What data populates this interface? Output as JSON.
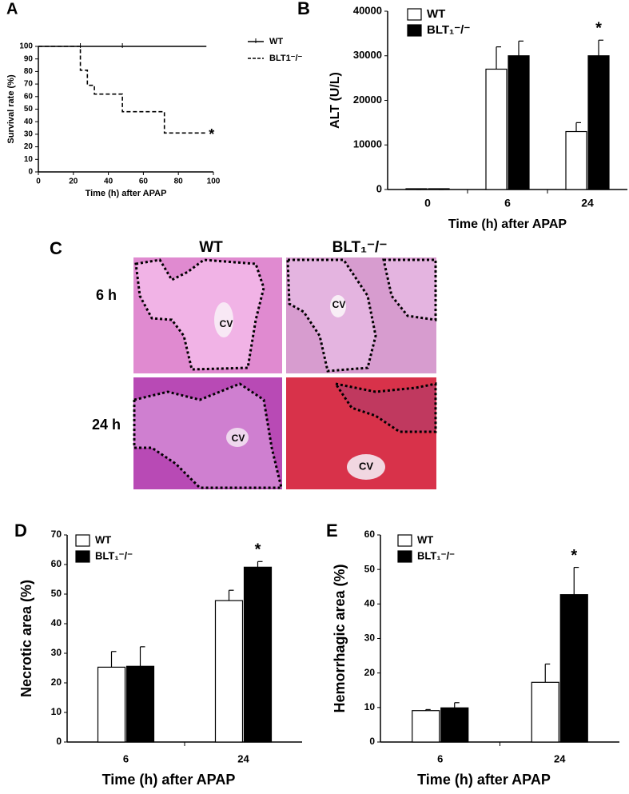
{
  "chart_data": [
    {
      "type": "line",
      "panel": "A",
      "xlabel": "Time (h) after APAP",
      "ylabel": "Survival rate (%)",
      "xlim": [
        0,
        100
      ],
      "xticks": [
        0,
        20,
        40,
        60,
        80,
        100
      ],
      "ylim": [
        0,
        100
      ],
      "yticks": [
        0,
        10,
        20,
        30,
        40,
        50,
        60,
        70,
        80,
        90,
        100
      ],
      "step": "post",
      "legend": "right",
      "series": [
        {
          "name": "WT",
          "color": "#000000",
          "dash": "solid",
          "censor_marks": true,
          "x": [
            0,
            24,
            48,
            96
          ],
          "values": [
            100,
            100,
            100,
            100
          ]
        },
        {
          "name": "BLT1⁻/⁻",
          "color": "#000000",
          "dash": "dashed",
          "annotation": "*",
          "x": [
            0,
            24,
            28,
            32,
            48,
            72,
            96
          ],
          "values": [
            100,
            81,
            69,
            62,
            48,
            31,
            31
          ]
        }
      ]
    },
    {
      "type": "bar",
      "panel": "B",
      "xlabel": "Time (h) after APAP",
      "ylabel": "ALT (U/L)",
      "categories": [
        "0",
        "6",
        "24"
      ],
      "ylim": [
        0,
        40000
      ],
      "yticks": [
        0,
        10000,
        20000,
        30000,
        40000
      ],
      "legend": "upper left",
      "series": [
        {
          "name": "WT",
          "color": "#ffffff",
          "values": [
            0,
            27000,
            13000
          ],
          "errors": [
            0,
            5000,
            2000
          ],
          "markers": [
            null,
            null,
            null
          ]
        },
        {
          "name": "BLT₁⁻/⁻",
          "color": "#000000",
          "values": [
            0,
            30000,
            30000
          ],
          "errors": [
            0,
            3300,
            3500
          ],
          "markers": [
            null,
            null,
            "*"
          ]
        }
      ]
    },
    {
      "type": "bar",
      "panel": "D",
      "xlabel": "Time (h) after APAP",
      "ylabel": "Necrotic area (%)",
      "categories": [
        "6",
        "24"
      ],
      "ylim": [
        0,
        70
      ],
      "yticks": [
        0,
        10,
        20,
        30,
        40,
        50,
        60,
        70
      ],
      "legend": "upper left",
      "series": [
        {
          "name": "WT",
          "color": "#ffffff",
          "values": [
            25.3,
            47.8
          ],
          "errors": [
            5.3,
            3.5
          ],
          "markers": [
            null,
            null
          ]
        },
        {
          "name": "BLT₁⁻/⁻",
          "color": "#000000",
          "values": [
            25.6,
            59.1
          ],
          "errors": [
            6.6,
            1.9
          ],
          "markers": [
            null,
            "*"
          ]
        }
      ]
    },
    {
      "type": "bar",
      "panel": "E",
      "xlabel": "Time (h) after APAP",
      "ylabel": "Hemorrhagic area (%)",
      "categories": [
        "6",
        "24"
      ],
      "ylim": [
        0,
        60
      ],
      "yticks": [
        0,
        10,
        20,
        30,
        40,
        50,
        60
      ],
      "legend": "upper left",
      "series": [
        {
          "name": "WT",
          "color": "#ffffff",
          "values": [
            9.1,
            17.3
          ],
          "errors": [
            0.3,
            5.3
          ],
          "markers": [
            null,
            null
          ]
        },
        {
          "name": "BLT₁⁻/⁻",
          "color": "#000000",
          "values": [
            9.9,
            42.7
          ],
          "errors": [
            1.5,
            7.9
          ],
          "markers": [
            null,
            "*"
          ]
        }
      ]
    }
  ],
  "histology": {
    "panel": "C",
    "columns": [
      "WT",
      "BLT₁⁻/⁻"
    ],
    "rows": [
      "6 h",
      "24 h"
    ],
    "region_label": "CV"
  }
}
